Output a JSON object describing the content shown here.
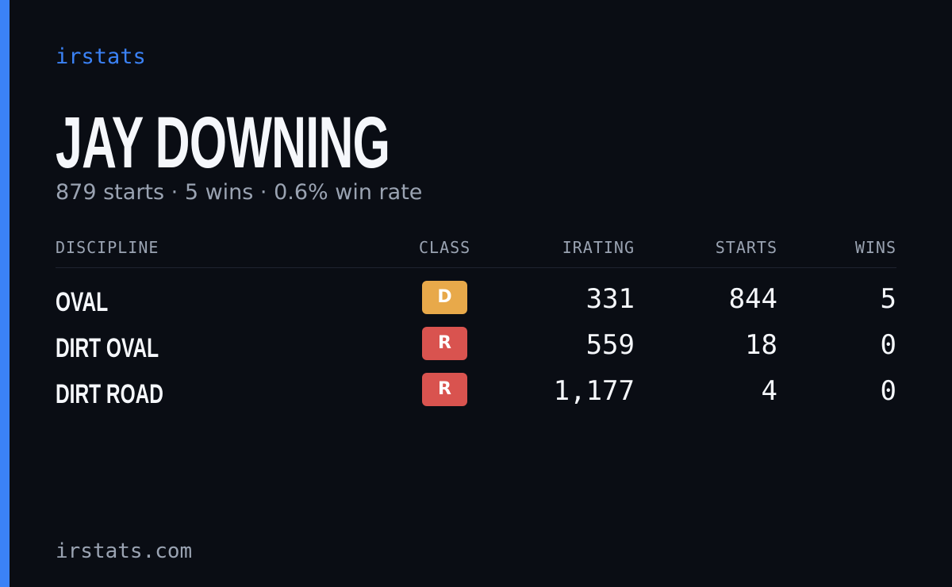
{
  "header": {
    "brand": "irstats",
    "title": "JAY DOWNING",
    "subtitle": "879 starts · 5 wins · 0.6% win rate"
  },
  "table": {
    "columns": [
      "DISCIPLINE",
      "CLASS",
      "IRATING",
      "STARTS",
      "WINS"
    ],
    "rows": [
      [
        "OVAL",
        "D",
        "331",
        "844",
        "5"
      ],
      [
        "DIRT OVAL",
        "R",
        "559",
        "18",
        "0"
      ],
      [
        "DIRT ROAD",
        "R",
        "1,177",
        "4",
        "0"
      ]
    ]
  },
  "footer": {
    "site": "irstats.com"
  }
}
